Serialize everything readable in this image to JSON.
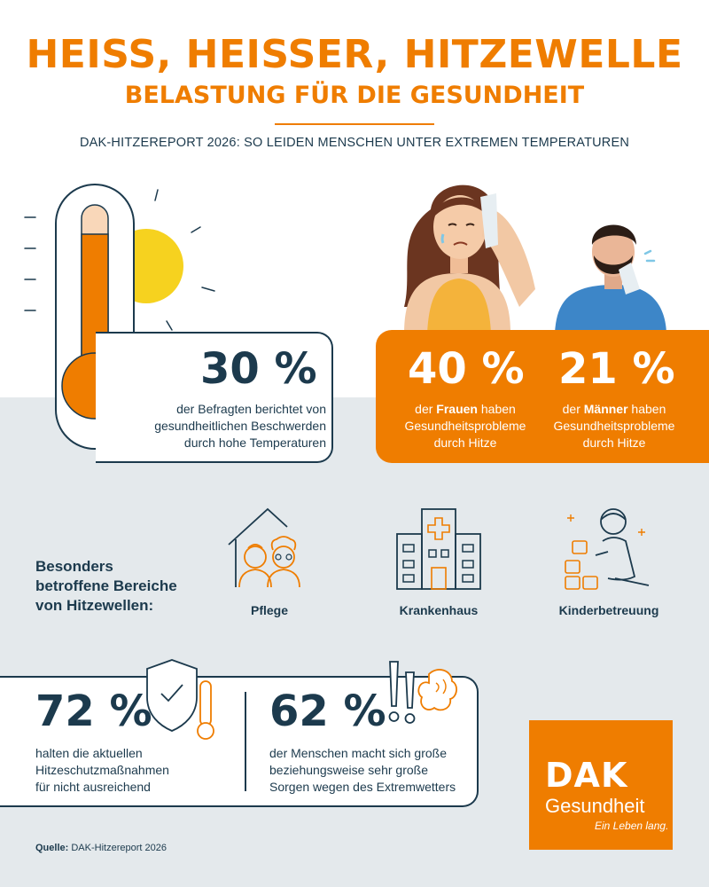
{
  "header": {
    "title": "HEISS, HEISSER, HITZEWELLE",
    "subtitle": "BELASTUNG FÜR DIE GESUNDHEIT",
    "report_line": "DAK-HITZEREPORT 2026: SO LEIDEN MENSCHEN UNTER EXTREMEN TEMPERATUREN"
  },
  "stat_total": {
    "value": "30 %",
    "lines": [
      "der Befragten berichtet von",
      "gesundheitlichen Beschwerden",
      "durch hohe Temperaturen"
    ]
  },
  "stat_women": {
    "value": "40 %",
    "pre": "der ",
    "bold": "Frauen",
    "post": " haben",
    "line2": "Gesundheitsprobleme",
    "line3": "durch Hitze"
  },
  "stat_men": {
    "value": "21 %",
    "pre": "der ",
    "bold": "Männer",
    "post": " haben",
    "line2": "Gesundheitsprobleme",
    "line3": "durch Hitze"
  },
  "areas": {
    "title_lines": [
      "Besonders",
      "betroffene Bereiche",
      "von Hitzewellen:"
    ],
    "items": [
      {
        "label": "Pflege",
        "icon": "elderly-home-icon"
      },
      {
        "label": "Krankenhaus",
        "icon": "hospital-icon"
      },
      {
        "label": "Kinderbetreuung",
        "icon": "child-blocks-icon"
      }
    ]
  },
  "stat_protection": {
    "value": "72 %",
    "lines": [
      "halten die aktuellen",
      "Hitzeschutzmaßnahmen",
      "für nicht ausreichend"
    ]
  },
  "stat_worry": {
    "value": "62 %",
    "lines": [
      "der Menschen macht sich große",
      "beziehungsweise sehr große",
      "Sorgen wegen des Extremwetters"
    ]
  },
  "logo": {
    "brand": "DAK",
    "name": "Gesundheit",
    "slogan": "Ein Leben lang."
  },
  "source": {
    "label": "Quelle:",
    "text": " DAK-Hitzereport 2026"
  },
  "colors": {
    "orange": "#ef7d00",
    "navy": "#1c3a4d",
    "yellow": "#f6d21f",
    "light_bg": "#e4e9ec"
  }
}
